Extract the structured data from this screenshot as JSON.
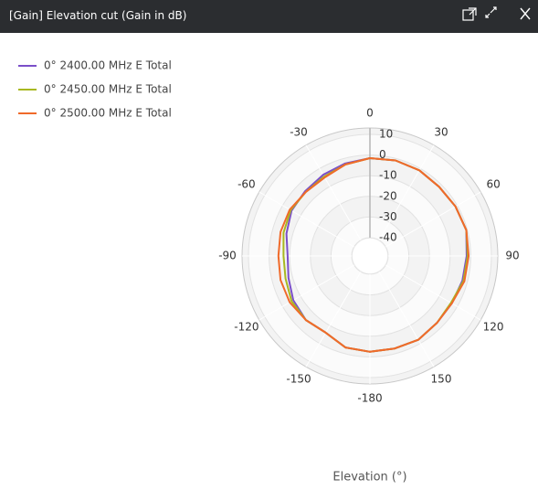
{
  "window_title": "[Gain] Elevation cut (Gain in dB)",
  "chart_data": {
    "type": "polar",
    "x_label": "Elevation (°)",
    "x": [
      0,
      15,
      30,
      45,
      60,
      75,
      90,
      105,
      120,
      135,
      150,
      165,
      180,
      -165,
      -150,
      -135,
      -120,
      -105,
      -90,
      -75,
      -60,
      -45,
      -30,
      -15
    ],
    "series": [
      {
        "name": "0° 2400.00 MHz E Total",
        "color": "#7b4fc9",
        "values": [
          -1.5,
          -1,
          -1,
          -1.5,
          -1,
          -0.5,
          -2,
          -2.5,
          -3,
          -3,
          -2,
          -2.5,
          -2.5,
          -3,
          -6,
          -5,
          -6,
          -8,
          -9,
          -7,
          -5,
          -4.5,
          -3.5,
          -2.5
        ]
      },
      {
        "name": "0° 2450.00 MHz E Total",
        "color": "#a8b820",
        "values": [
          -1.5,
          -1,
          -1,
          -1.5,
          -1,
          -0.5,
          -1.5,
          -2,
          -3.5,
          -3,
          -2,
          -2.5,
          -2.5,
          -3,
          -6,
          -5,
          -5,
          -6.5,
          -7,
          -5.5,
          -4.5,
          -5,
          -4.5,
          -3
        ]
      },
      {
        "name": "0° 2500.00 MHz E Total",
        "color": "#f06a2a",
        "values": [
          -1.5,
          -1,
          -1,
          -1.5,
          -1,
          -0.5,
          -1,
          -1.5,
          -3,
          -3,
          -2,
          -2.5,
          -2.5,
          -3,
          -6,
          -5,
          -4,
          -4,
          -4.5,
          -4,
          -4,
          -5,
          -5,
          -3
        ]
      }
    ],
    "ylim": [
      -40,
      10
    ],
    "yticks": [
      -40,
      -30,
      -20,
      -10,
      0,
      10
    ],
    "xticks": [
      0,
      30,
      60,
      90,
      120,
      150,
      -180,
      -150,
      -120,
      -90,
      -60,
      -30
    ],
    "grid": true,
    "legend": "top-left"
  }
}
